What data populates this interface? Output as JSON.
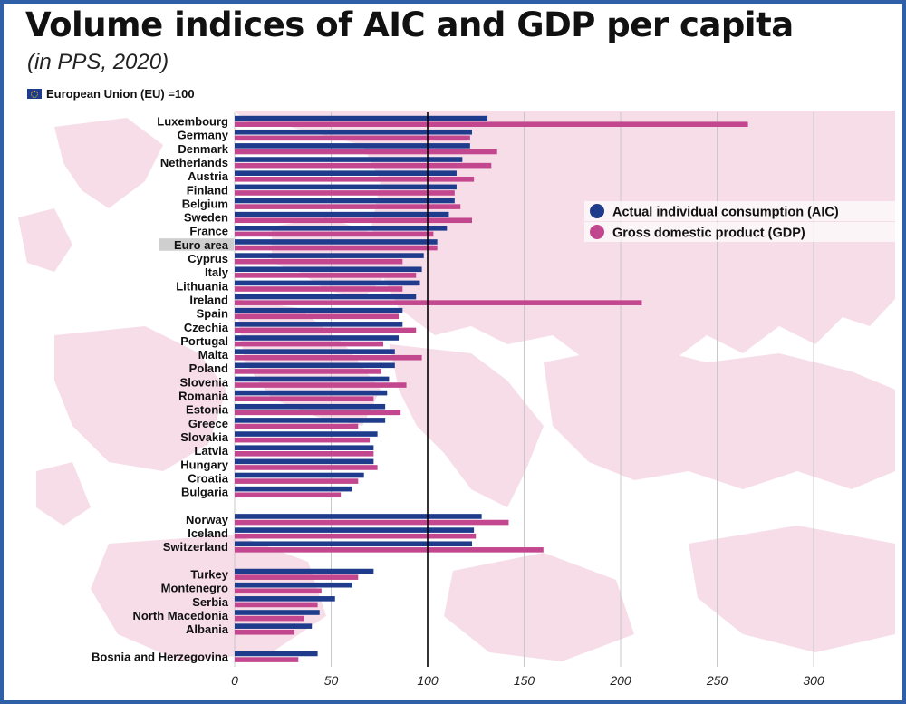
{
  "header": {
    "title": "Volume indices of AIC and GDP per capita",
    "subtitle": "(in PPS, 2020)",
    "eu_note": "European Union (EU) =100"
  },
  "colors": {
    "aic": "#1f3b8c",
    "gdp": "#c2478e",
    "map": "#f6dde8",
    "highlight": "#cfcfcf",
    "frame": "#2f5fa6"
  },
  "chart_data": {
    "type": "bar",
    "orientation": "horizontal",
    "title": "Volume indices of AIC and GDP per capita",
    "subtitle": "(in PPS, 2020)",
    "xlim": [
      0,
      330
    ],
    "xticks": [
      0,
      50,
      100,
      150,
      200,
      250,
      300
    ],
    "reference_line": 100,
    "grid": true,
    "legend_position": "right",
    "highlighted_category": "Euro area",
    "groups": [
      [
        "Luxembourg",
        "Germany",
        "Denmark",
        "Netherlands",
        "Austria",
        "Finland",
        "Belgium",
        "Sweden",
        "France",
        "Euro area",
        "Cyprus",
        "Italy",
        "Lithuania",
        "Ireland",
        "Spain",
        "Czechia",
        "Portugal",
        "Malta",
        "Poland",
        "Slovenia",
        "Romania",
        "Estonia",
        "Greece",
        "Slovakia",
        "Latvia",
        "Hungary",
        "Croatia",
        "Bulgaria"
      ],
      [
        "Norway",
        "Iceland",
        "Switzerland"
      ],
      [
        "Turkey",
        "Montenegro",
        "Serbia",
        "North Macedonia",
        "Albania"
      ],
      [
        "Bosnia and Herzegovina"
      ]
    ],
    "series": [
      {
        "name": "Actual individual consumption (AIC)",
        "values": [
          131,
          123,
          122,
          118,
          115,
          115,
          114,
          111,
          110,
          105,
          98,
          97,
          96,
          94,
          87,
          87,
          85,
          83,
          83,
          80,
          79,
          78,
          78,
          74,
          72,
          72,
          67,
          61,
          128,
          124,
          123,
          72,
          61,
          52,
          44,
          40,
          43
        ]
      },
      {
        "name": "Gross domestic product (GDP)",
        "values": [
          266,
          122,
          136,
          133,
          124,
          114,
          117,
          123,
          103,
          105,
          87,
          94,
          87,
          211,
          85,
          94,
          77,
          97,
          76,
          89,
          72,
          86,
          64,
          70,
          72,
          74,
          64,
          55,
          142,
          125,
          160,
          64,
          45,
          43,
          36,
          31,
          33
        ]
      }
    ]
  }
}
